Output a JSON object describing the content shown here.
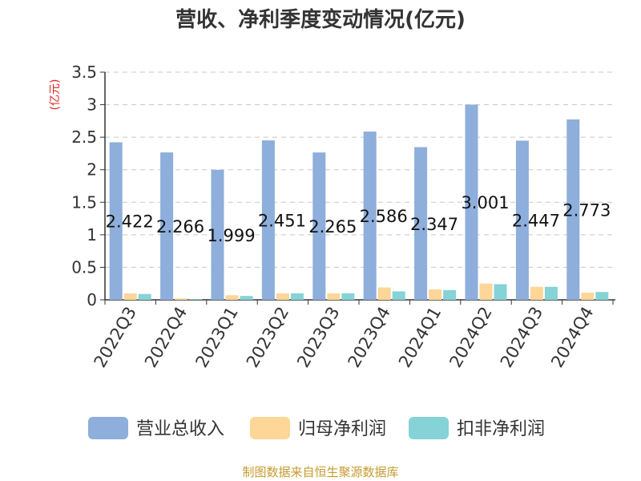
{
  "title": "营收、净利季度变动情况(亿元)",
  "source": "制图数据来自恒生聚源数据库",
  "chart_data": {
    "type": "bar",
    "title": "营收、净利季度变动情况(亿元)",
    "ylabel": "(亿元)",
    "ylim": [
      0,
      3.5
    ],
    "yticks": [
      "0",
      "0.5",
      "1",
      "1.5",
      "2",
      "2.5",
      "3",
      "3.5"
    ],
    "grid": true,
    "legend_position": "bottom",
    "categories": [
      "2022Q3",
      "2022Q4",
      "2023Q1",
      "2023Q2",
      "2023Q3",
      "2023Q4",
      "2024Q1",
      "2024Q2",
      "2024Q3",
      "2024Q4"
    ],
    "series": [
      {
        "name": "营业总收入",
        "color": "#8eaedb",
        "values": [
          2.422,
          2.266,
          1.999,
          2.451,
          2.265,
          2.586,
          2.347,
          3.001,
          2.447,
          2.773
        ],
        "labels": [
          "2.422",
          "2.266",
          "1.999",
          "2.451",
          "2.265",
          "2.586",
          "2.347",
          "3.001",
          "2.447",
          "2.773"
        ]
      },
      {
        "name": "归母净利润",
        "color": "#fdd698",
        "values": [
          0.1,
          0.02,
          0.07,
          0.1,
          0.1,
          0.19,
          0.16,
          0.25,
          0.2,
          0.11
        ]
      },
      {
        "name": "扣非净利润",
        "color": "#85d3d6",
        "values": [
          0.09,
          0.01,
          0.06,
          0.1,
          0.1,
          0.13,
          0.15,
          0.24,
          0.2,
          0.12
        ]
      }
    ]
  }
}
